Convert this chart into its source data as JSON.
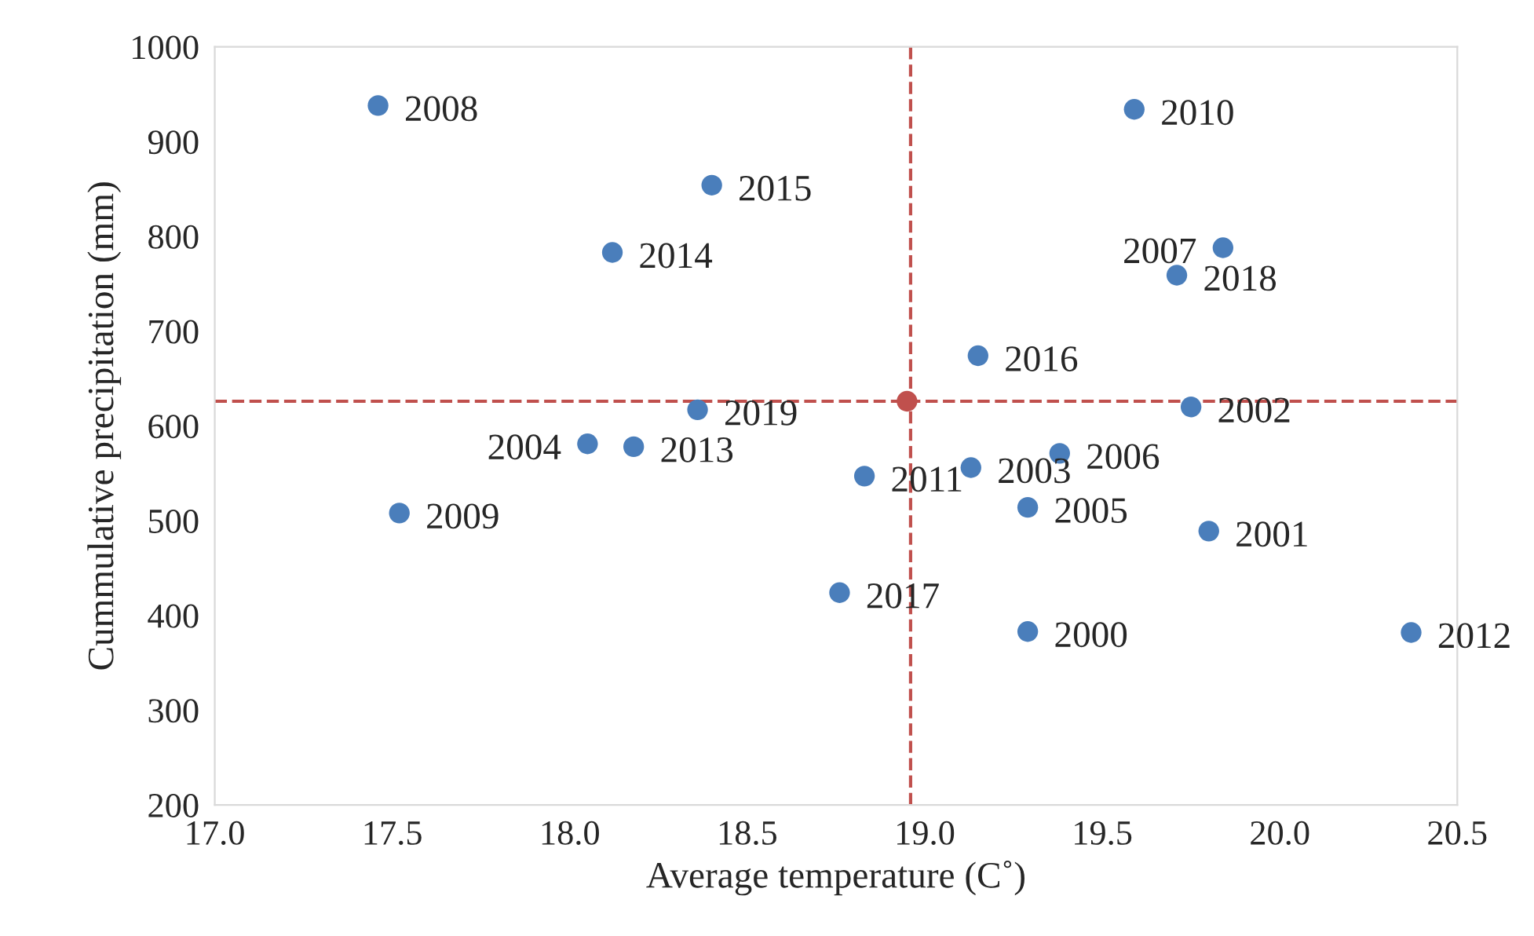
{
  "chart_data": {
    "type": "scatter",
    "xlabel": "Average temperature (C˚)",
    "ylabel": "Cummulative precipitation (mm)",
    "xlim": [
      17.0,
      20.5
    ],
    "xticks": [
      {
        "value": 17.0,
        "label": "17.0"
      },
      {
        "value": 17.5,
        "label": "17.5"
      },
      {
        "value": 18.0,
        "label": "18.0"
      },
      {
        "value": 18.5,
        "label": "18.5"
      },
      {
        "value": 19.0,
        "label": "19.0"
      },
      {
        "value": 19.5,
        "label": "19.5"
      },
      {
        "value": 20.0,
        "label": "20.0"
      },
      {
        "value": 20.5,
        "label": "20.5"
      }
    ],
    "ylim": [
      200,
      1000
    ],
    "yticks": [
      200,
      300,
      400,
      500,
      600,
      700,
      800,
      900,
      1000
    ],
    "grid": false,
    "marker": "circle",
    "series": [
      {
        "color": "#4a7ebb",
        "x": [
          17.46,
          18.4,
          18.12,
          19.59,
          19.84,
          19.71,
          19.15,
          18.36,
          19.75,
          18.05,
          18.18,
          19.38,
          19.13,
          18.83,
          19.29,
          19.8,
          17.52,
          18.76,
          19.29,
          20.37
        ],
        "values": [
          938,
          854,
          783,
          934,
          788,
          759,
          674,
          617,
          620,
          581,
          578,
          571,
          556,
          547,
          514,
          489,
          508,
          424,
          383,
          382
        ]
      },
      {
        "color": "#c0504d",
        "x": [
          18.95
        ],
        "values": [
          626
        ]
      }
    ],
    "ref_lines": [
      {
        "axis": "x",
        "value": 18.96,
        "color": "#c0504d",
        "line_style": "dashed"
      },
      {
        "axis": "y",
        "value": 626,
        "color": "#c0504d",
        "line_style": "dashed"
      }
    ],
    "annotations": [
      {
        "text": "2008",
        "x": 17.46,
        "y": 938
      },
      {
        "text": "2015",
        "x": 18.4,
        "y": 854
      },
      {
        "text": "2014",
        "x": 18.12,
        "y": 783
      },
      {
        "text": "2010",
        "x": 19.59,
        "y": 934
      },
      {
        "text": "2007",
        "x": 19.84,
        "y": 788
      },
      {
        "text": "2018",
        "x": 19.71,
        "y": 759
      },
      {
        "text": "2016",
        "x": 19.15,
        "y": 674
      },
      {
        "text": "2019",
        "x": 18.36,
        "y": 617
      },
      {
        "text": "2002",
        "x": 19.75,
        "y": 620
      },
      {
        "text": "2004",
        "x": 18.05,
        "y": 581
      },
      {
        "text": "2013",
        "x": 18.18,
        "y": 578
      },
      {
        "text": "2006",
        "x": 19.38,
        "y": 571
      },
      {
        "text": "2003",
        "x": 19.13,
        "y": 556
      },
      {
        "text": "2011",
        "x": 18.83,
        "y": 547
      },
      {
        "text": "2005",
        "x": 19.29,
        "y": 514
      },
      {
        "text": "2001",
        "x": 19.8,
        "y": 489
      },
      {
        "text": "2009",
        "x": 17.52,
        "y": 508
      },
      {
        "text": "2017",
        "x": 18.76,
        "y": 424
      },
      {
        "text": "2000",
        "x": 19.29,
        "y": 383
      },
      {
        "text": "2012",
        "x": 20.37,
        "y": 382
      }
    ]
  }
}
